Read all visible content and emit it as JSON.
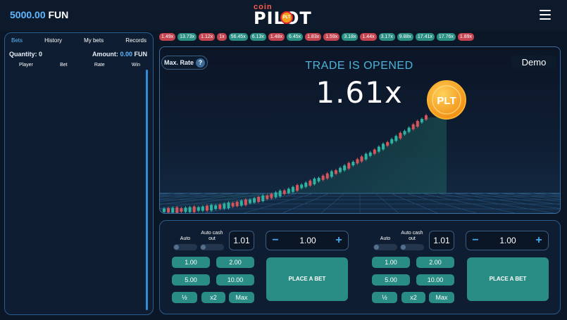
{
  "header": {
    "balance_amount": "5000.00",
    "balance_currency": "FUN",
    "logo_top": "coin",
    "logo_main": "PILOT",
    "logo_badge": "PLT"
  },
  "sidebar": {
    "tabs": [
      {
        "label": "Bets",
        "active": true
      },
      {
        "label": "History",
        "active": false
      },
      {
        "label": "My bets",
        "active": false
      },
      {
        "label": "Records",
        "active": false
      }
    ],
    "quantity_label": "Quantity:",
    "quantity_value": "0",
    "amount_label": "Amount:",
    "amount_value": "0.00",
    "amount_currency": "FUN",
    "columns": [
      "Player",
      "Bet",
      "Rate",
      "Win"
    ]
  },
  "multiplier_history": [
    {
      "value": "1.49x",
      "color": "red"
    },
    {
      "value": "13.73x",
      "color": "green"
    },
    {
      "value": "1.12x",
      "color": "red"
    },
    {
      "value": "1x",
      "color": "red"
    },
    {
      "value": "56.45x",
      "color": "green"
    },
    {
      "value": "6.13x",
      "color": "green"
    },
    {
      "value": "1.48x",
      "color": "red"
    },
    {
      "value": "6.45x",
      "color": "green"
    },
    {
      "value": "1.83x",
      "color": "red"
    },
    {
      "value": "1.59x",
      "color": "red"
    },
    {
      "value": "3.18x",
      "color": "green"
    },
    {
      "value": "1.44x",
      "color": "red"
    },
    {
      "value": "3.17x",
      "color": "green"
    },
    {
      "value": "9.88x",
      "color": "green"
    },
    {
      "value": "17.41x",
      "color": "green"
    },
    {
      "value": "17.76x",
      "color": "green"
    },
    {
      "value": "1.89x",
      "color": "red"
    }
  ],
  "game": {
    "max_rate_label": "Max. Rate",
    "status": "TRADE IS OPENED",
    "mode": "Demo",
    "multiplier": "1.61x",
    "coin_label": "PLT",
    "colors": {
      "up_candle": "#2fb3a0",
      "down_candle": "#d9535a",
      "coin": "#f5a623"
    }
  },
  "bet_panels": [
    {
      "auto_label": "Auto",
      "auto_cashout_label": "Auto cash out",
      "cashout_value": "1.01",
      "stake_value": "1.00",
      "quick_amounts": [
        "1.00",
        "2.00",
        "5.00",
        "10.00"
      ],
      "half_label": "½",
      "double_label": "x2",
      "max_label": "Max",
      "place_bet_label": "PLACE A BET"
    },
    {
      "auto_label": "Auto",
      "auto_cashout_label": "Auto cash out",
      "cashout_value": "1.01",
      "stake_value": "1.00",
      "quick_amounts": [
        "1.00",
        "2.00",
        "5.00",
        "10.00"
      ],
      "half_label": "½",
      "double_label": "x2",
      "max_label": "Max",
      "place_bet_label": "PLACE A BET"
    }
  ]
}
